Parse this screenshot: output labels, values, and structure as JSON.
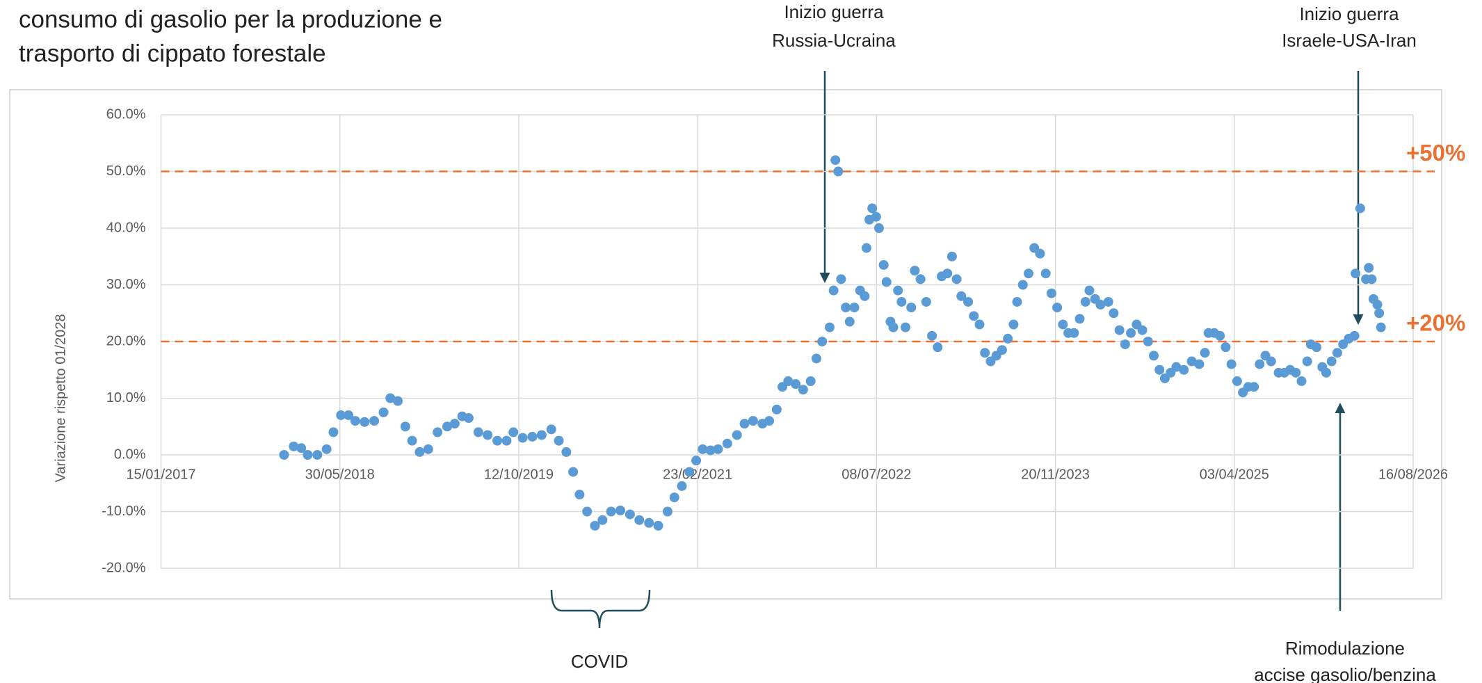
{
  "chart_data": {
    "type": "scatter",
    "title_lines": [
      "consumo di gasolio per la produzione e",
      "trasporto di cippato forestale"
    ],
    "ylabel": "Variazione rispetto 01/2028",
    "color": "#5b9bd5",
    "grid": true,
    "xlim": [
      42750,
      46250
    ],
    "xticks": [
      {
        "value": 42750,
        "label": "15/01/2017"
      },
      {
        "value": 43250,
        "label": "30/05/2018"
      },
      {
        "value": 43750,
        "label": "12/10/2019"
      },
      {
        "value": 44250,
        "label": "23/02/2021"
      },
      {
        "value": 44750,
        "label": "08/07/2022"
      },
      {
        "value": 45250,
        "label": "20/11/2023"
      },
      {
        "value": 45750,
        "label": "03/04/2025"
      },
      {
        "value": 46250,
        "label": "16/08/2026"
      }
    ],
    "ylim": [
      -20,
      60
    ],
    "yticks": [
      {
        "value": -20,
        "label": "-20.0%"
      },
      {
        "value": -10,
        "label": "-10.0%"
      },
      {
        "value": 0,
        "label": "0.0%"
      },
      {
        "value": 10,
        "label": "10.0%"
      },
      {
        "value": 20,
        "label": "20.0%"
      },
      {
        "value": 30,
        "label": "30.0%"
      },
      {
        "value": 40,
        "label": "40.0%"
      },
      {
        "value": 50,
        "label": "50.0%"
      },
      {
        "value": 60,
        "label": "60.0%"
      }
    ],
    "reference_lines": [
      {
        "value": 50,
        "label": "+50%",
        "color": "#e97132"
      },
      {
        "value": 20,
        "label": "+20%",
        "color": "#e97132"
      }
    ],
    "annotations": [
      {
        "lines": [
          "Inizio guerra",
          "Russia-Ucraina"
        ]
      },
      {
        "lines": [
          "Inizio guerra",
          "Israele-USA-Iran"
        ]
      },
      {
        "lines": [
          "Rimodulazione",
          "accise gasolio/benzina"
        ]
      },
      {
        "lines": [
          "COVID"
        ]
      }
    ],
    "x": [
      43094,
      43121,
      43142,
      43160,
      43187,
      43213,
      43232,
      43253,
      43274,
      43293,
      43319,
      43346,
      43372,
      43391,
      43412,
      43433,
      43452,
      43473,
      43497,
      43523,
      43550,
      43571,
      43592,
      43610,
      43637,
      43663,
      43690,
      43716,
      43735,
      43761,
      43788,
      43814,
      43841,
      43862,
      43883,
      43902,
      43920,
      43941,
      43963,
      43984,
      44008,
      44034,
      44061,
      44087,
      44114,
      44140,
      44166,
      44185,
      44206,
      44227,
      44246,
      44264,
      44286,
      44307,
      44333,
      44360,
      44381,
      44405,
      44431,
      44450,
      44471,
      44487,
      44503,
      44524,
      44545,
      44566,
      44582,
      44598,
      44619,
      44630,
      44635,
      44643,
      44651,
      44664,
      44675,
      44688,
      44704,
      44717,
      44722,
      44730,
      44738,
      44749,
      44757,
      44770,
      44778,
      44789,
      44797,
      44810,
      44820,
      44831,
      44847,
      44857,
      44873,
      44889,
      44905,
      44921,
      44932,
      44948,
      44961,
      44974,
      44987,
      45006,
      45022,
      45038,
      45053,
      45069,
      45085,
      45101,
      45117,
      45133,
      45143,
      45159,
      45175,
      45191,
      45207,
      45223,
      45239,
      45255,
      45271,
      45286,
      45302,
      45318,
      45334,
      45345,
      45361,
      45376,
      45398,
      45413,
      45429,
      45445,
      45461,
      45477,
      45493,
      45509,
      45525,
      45541,
      45556,
      45572,
      45588,
      45609,
      45631,
      45652,
      45668,
      45678,
      45694,
      45710,
      45726,
      45742,
      45758,
      45774,
      45789,
      45805,
      45821,
      45837,
      45853,
      45874,
      45890,
      45906,
      45922,
      45938,
      45954,
      45964,
      45980,
      45996,
      46007,
      46022,
      46038,
      46054,
      46070,
      46086,
      46089,
      46102,
      46118,
      46126,
      46134,
      46139,
      46150,
      46155,
      46160
    ],
    "values": [
      0,
      1.5,
      1.2,
      0,
      0,
      1,
      4,
      7,
      7,
      6,
      5.8,
      6,
      7.5,
      10,
      9.5,
      5,
      2.5,
      0.5,
      1,
      4,
      5,
      5.5,
      6.8,
      6.5,
      4,
      3.5,
      2.5,
      2.5,
      4,
      3,
      3.2,
      3.5,
      4.5,
      2.5,
      0.5,
      -3,
      -7,
      -10,
      -12.5,
      -11.5,
      -10,
      -9.8,
      -10.5,
      -11.5,
      -12,
      -12.5,
      -10,
      -7.5,
      -5.5,
      -3,
      -1,
      1,
      0.8,
      1,
      2,
      3.5,
      5.5,
      6,
      5.5,
      6,
      8,
      12,
      13,
      12.5,
      11.5,
      13,
      17,
      20,
      22.5,
      29,
      52,
      50,
      31,
      26,
      23.5,
      26,
      29,
      28,
      36.5,
      41.5,
      43.5,
      42,
      40,
      33.5,
      30.5,
      23.5,
      22.5,
      29,
      27,
      22.5,
      26,
      32.5,
      31,
      27,
      21,
      19,
      31.5,
      32,
      35,
      31,
      28,
      27,
      24.5,
      23,
      18,
      16.5,
      17.5,
      18.5,
      20.5,
      23,
      27,
      30,
      32,
      36.5,
      35.5,
      32,
      28.5,
      26,
      23,
      21.5,
      21.5,
      24,
      27,
      29,
      27.5,
      26.5,
      27,
      25,
      22,
      19.5,
      21.5,
      23,
      22,
      20,
      17.5,
      15,
      13.5,
      14.5,
      15.5,
      15,
      16.5,
      16,
      18,
      21.5,
      21.5,
      21,
      19,
      16,
      13,
      11,
      12,
      12,
      16,
      17.5,
      16.5,
      14.5,
      14.5,
      15,
      14.5,
      13,
      16.5,
      19.5,
      19,
      15.5,
      14.5,
      16.5,
      18,
      19.5,
      20.5,
      21,
      32,
      43.5,
      31,
      33,
      31,
      27.5,
      26.5,
      25,
      22.5
    ]
  }
}
